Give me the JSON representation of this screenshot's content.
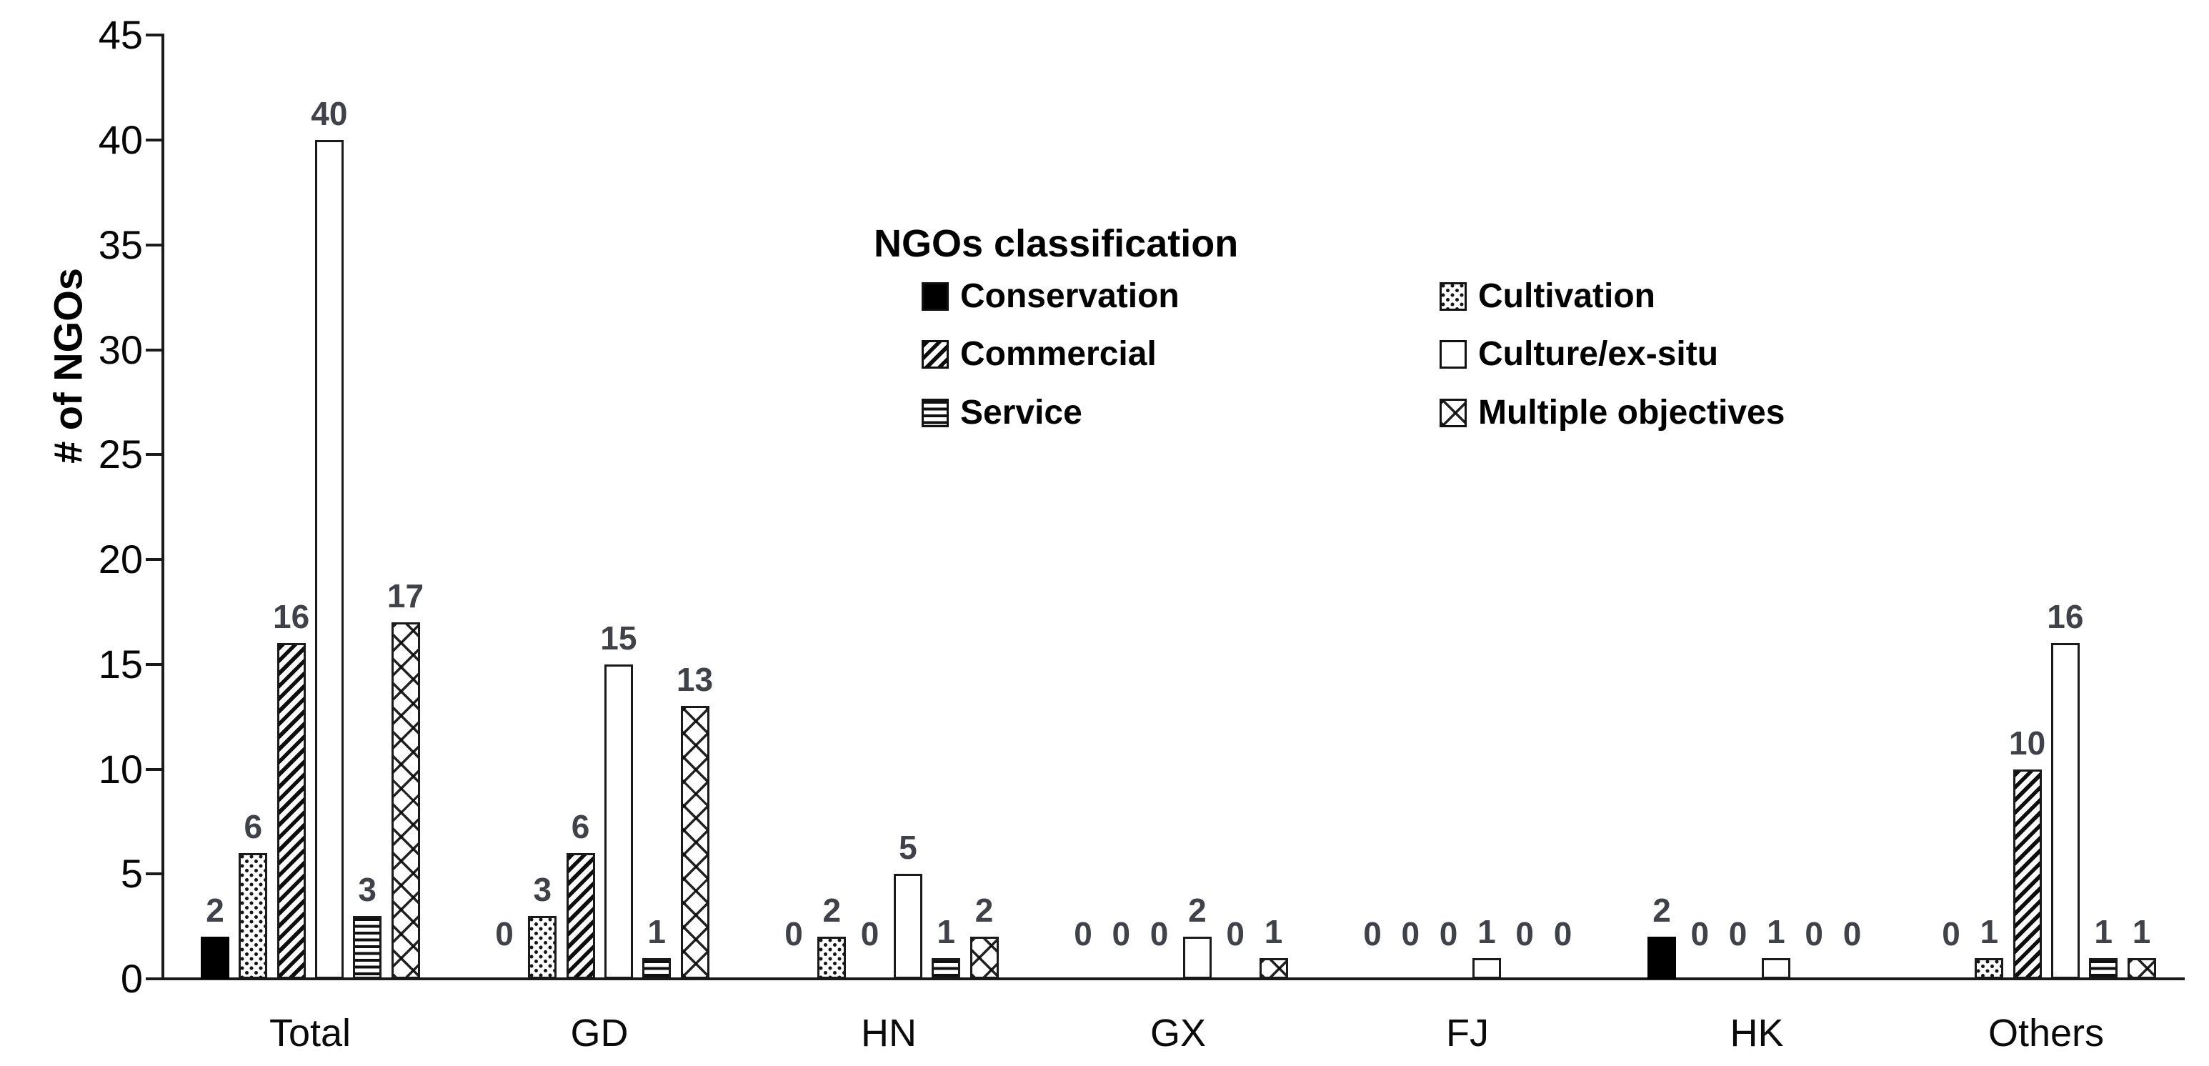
{
  "chart_data": {
    "type": "bar",
    "title": "",
    "legend_title": "NGOs classification",
    "ylabel": "# of NGOs",
    "xlabel": "",
    "ylim": [
      0,
      45
    ],
    "ytick_step": 5,
    "grid": false,
    "legend_position": "upper-center-two-columns",
    "value_labels_shown": true,
    "categories": [
      "Total",
      "GD",
      "HN",
      "GX",
      "FJ",
      "HK",
      "Others"
    ],
    "series": [
      {
        "name": "Conservation",
        "pattern": "solid",
        "values": [
          2,
          0,
          0,
          0,
          0,
          2,
          0
        ]
      },
      {
        "name": "Cultivation",
        "pattern": "dots",
        "values": [
          6,
          3,
          2,
          0,
          0,
          0,
          1
        ]
      },
      {
        "name": "Commercial",
        "pattern": "diagonal",
        "values": [
          16,
          6,
          0,
          0,
          0,
          0,
          10
        ]
      },
      {
        "name": "Culture/ex-situ",
        "pattern": "white",
        "values": [
          40,
          15,
          5,
          2,
          1,
          1,
          16
        ]
      },
      {
        "name": "Service",
        "pattern": "hlines",
        "values": [
          3,
          1,
          1,
          0,
          0,
          0,
          1
        ]
      },
      {
        "name": "Multiple objectives",
        "pattern": "crosshatch",
        "values": [
          17,
          13,
          2,
          1,
          0,
          0,
          1
        ]
      }
    ],
    "yticks": [
      0,
      5,
      10,
      15,
      20,
      25,
      30,
      35,
      40,
      45
    ]
  },
  "colors": {
    "background": "#ffffff",
    "axis": "#1a1a1a",
    "text": "#000000",
    "value_label": "#3f4249"
  }
}
